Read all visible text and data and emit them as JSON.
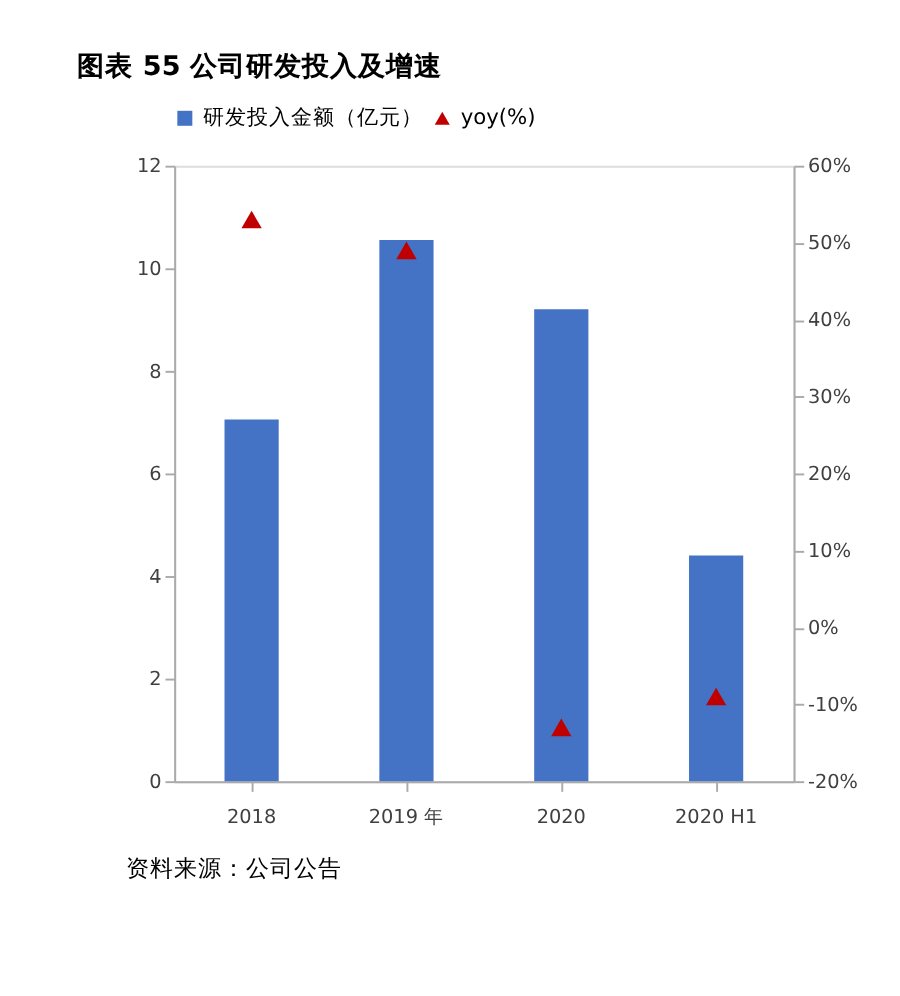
{
  "chart_data": {
    "type": "bar",
    "title": "图表 55  公司研发投入及增速",
    "categories": [
      "2018",
      "2019 年",
      "2020",
      "2020 H1"
    ],
    "series": [
      {
        "name": "研发投入金额（亿元）",
        "color": "#4472c4",
        "values": [
          7.05,
          10.55,
          9.2,
          4.4
        ]
      },
      {
        "name": "yoy(%)",
        "type": "scatter",
        "axis": "y2",
        "marker": "triangle",
        "color": "#c00000",
        "values": [
          53,
          49,
          -13,
          -9
        ]
      }
    ],
    "ylim": [
      0,
      12
    ],
    "yticks": [
      0,
      2,
      4,
      6,
      8,
      10,
      12
    ],
    "y2lim": [
      -20,
      60
    ],
    "y2ticks": [
      {
        "value": -20,
        "label": "-20%"
      },
      {
        "value": -10,
        "label": "-10%"
      },
      {
        "value": 0,
        "label": "0%"
      },
      {
        "value": 10,
        "label": "10%"
      },
      {
        "value": 20,
        "label": "20%"
      },
      {
        "value": 30,
        "label": "30%"
      },
      {
        "value": 40,
        "label": "40%"
      },
      {
        "value": 50,
        "label": "50%"
      },
      {
        "value": 60,
        "label": "60%"
      }
    ],
    "legend": "top",
    "grid": false,
    "annotations": [
      "资料来源：公司公告"
    ]
  }
}
